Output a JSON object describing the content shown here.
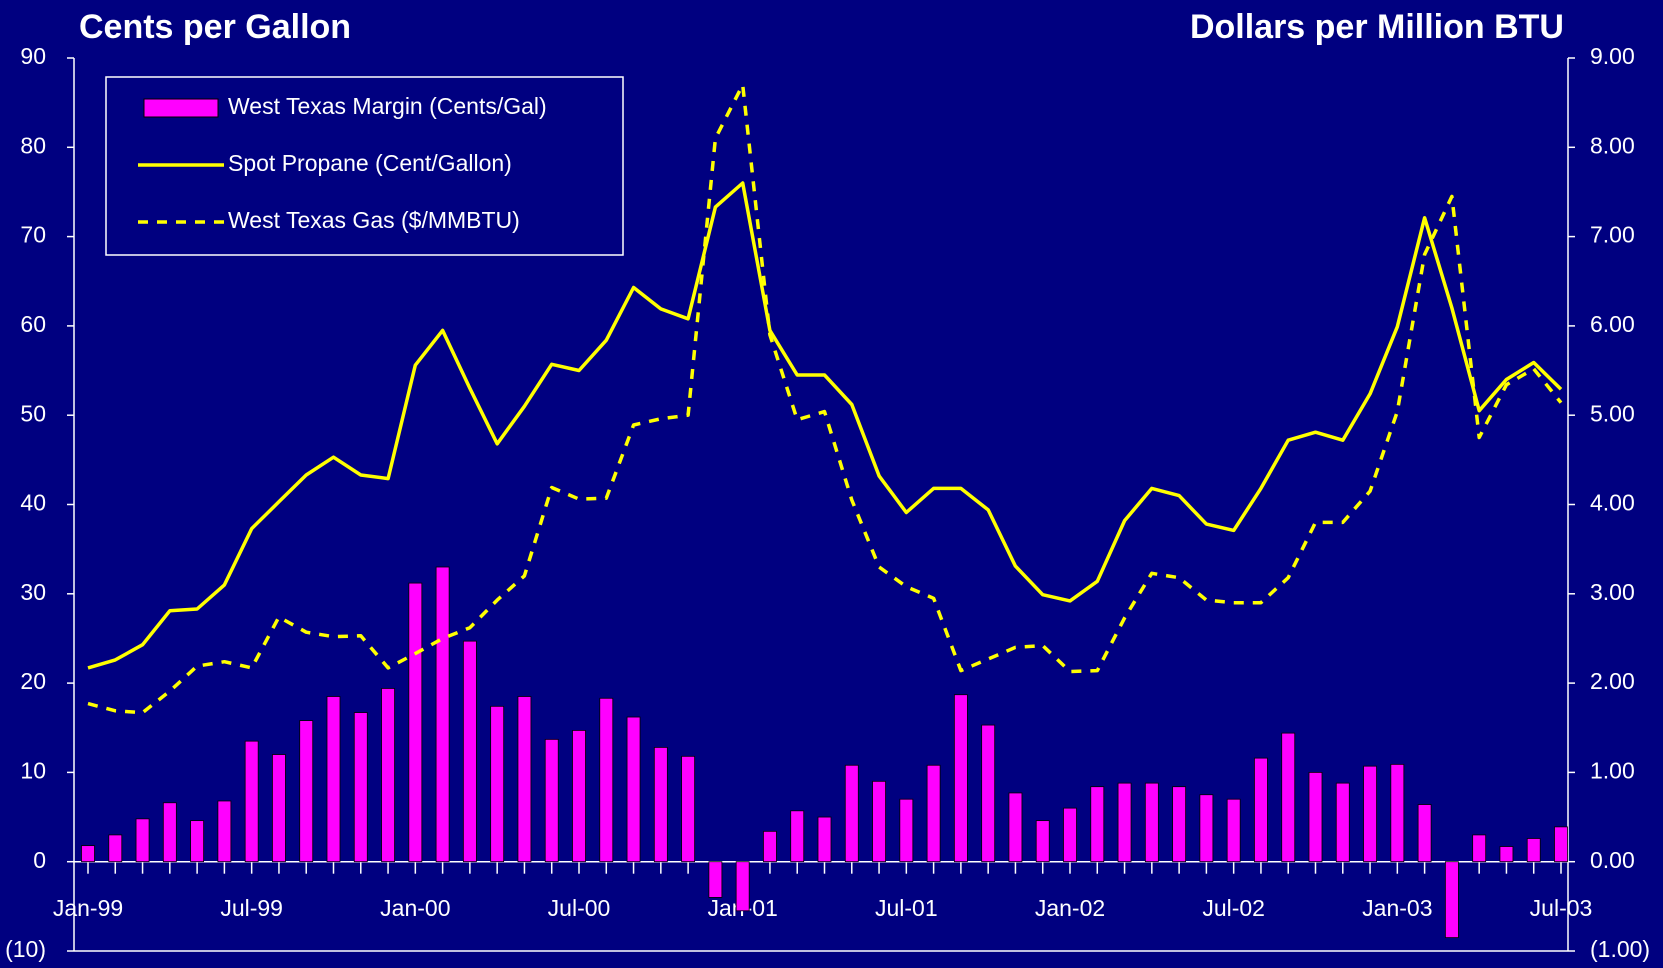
{
  "chart_data": {
    "type": "combo",
    "title_left": "Cents per Gallon",
    "title_right": "Dollars per Million  BTU",
    "background": "#000080",
    "categories": [
      "Jan-99",
      null,
      null,
      null,
      null,
      null,
      "Jul-99",
      null,
      null,
      null,
      null,
      null,
      "Jan-00",
      null,
      null,
      null,
      null,
      null,
      "Jul-00",
      null,
      null,
      null,
      null,
      null,
      "Jan-01",
      null,
      null,
      null,
      null,
      null,
      "Jul-01",
      null,
      null,
      null,
      null,
      null,
      "Jan-02",
      null,
      null,
      null,
      null,
      null,
      "Jul-02",
      null,
      null,
      null,
      null,
      null,
      "Jan-03",
      null,
      null,
      null,
      null,
      null,
      "Jul-03"
    ],
    "ylim": [
      -10,
      90
    ],
    "yticks": [
      {
        "value": -10,
        "label": "(10)"
      },
      0,
      10,
      20,
      30,
      40,
      50,
      60,
      70,
      80,
      90
    ],
    "y2lim": [
      -1,
      9
    ],
    "y2ticks": [
      {
        "value": -1,
        "label": "(1.00)"
      },
      {
        "value": 0,
        "label": "0.00"
      },
      {
        "value": 1,
        "label": "1.00"
      },
      {
        "value": 2,
        "label": "2.00"
      },
      {
        "value": 3,
        "label": "3.00"
      },
      {
        "value": 4,
        "label": "4.00"
      },
      {
        "value": 5,
        "label": "5.00"
      },
      {
        "value": 6,
        "label": "6.00"
      },
      {
        "value": 7,
        "label": "7.00"
      },
      {
        "value": 8,
        "label": "8.00"
      },
      {
        "value": 9,
        "label": "9.00"
      }
    ],
    "series": [
      {
        "name": "West Texas Margin (Cents/Gal)",
        "color": "#ff00ff",
        "type": "bar",
        "values": [
          1.8,
          3,
          4.8,
          6.6,
          4.6,
          6.8,
          13.5,
          12,
          15.8,
          18.5,
          16.7,
          19.4,
          31.2,
          33,
          24.7,
          17.4,
          18.5,
          13.7,
          14.7,
          18.3,
          16.2,
          12.8,
          11.8,
          -4,
          -5.5,
          3.4,
          5.7,
          5,
          10.8,
          9,
          7,
          10.8,
          18.7,
          15.3,
          7.7,
          4.6,
          6,
          8.4,
          8.8,
          8.8,
          8.4,
          7.5,
          7,
          11.6,
          14.4,
          10,
          8.8,
          10.7,
          10.9,
          6.4,
          -8.5,
          3,
          1.7,
          2.6,
          3.9
        ]
      },
      {
        "name": "Spot Propane (Cent/Gallon)",
        "color": "#ffff00",
        "type": "line",
        "line_style": "solid",
        "values": [
          21.7,
          22.6,
          24.3,
          28.1,
          28.3,
          31,
          37.3,
          40.3,
          43.3,
          45.3,
          43.3,
          42.9,
          55.6,
          59.5,
          53,
          46.8,
          51,
          55.7,
          55,
          58.4,
          64.3,
          61.9,
          60.8,
          73.3,
          76,
          59.5,
          54.5,
          54.5,
          51.2,
          43.2,
          39.1,
          41.8,
          41.8,
          39.4,
          33.1,
          29.9,
          29.2,
          31.4,
          38.2,
          41.8,
          41,
          37.8,
          37.1,
          41.8,
          47.2,
          48.1,
          47.2,
          52.4,
          59.9,
          72.1,
          62,
          50.5,
          54,
          55.9,
          52.9
        ]
      },
      {
        "name": "West Texas Gas ($/MMBTU)",
        "color": "#ffff00",
        "type": "line",
        "line_style": "dashed",
        "axis": "y2",
        "values": [
          1.77,
          1.69,
          1.67,
          1.91,
          2.19,
          2.24,
          2.17,
          2.74,
          2.57,
          2.52,
          2.53,
          2.17,
          2.33,
          2.5,
          2.62,
          2.93,
          3.2,
          4.19,
          4.06,
          4.07,
          4.89,
          4.96,
          5.0,
          8.1,
          8.7,
          5.9,
          4.95,
          5.04,
          4.05,
          3.3,
          3.08,
          2.95,
          2.14,
          2.27,
          2.4,
          2.42,
          2.13,
          2.14,
          2.73,
          3.23,
          3.18,
          2.93,
          2.9,
          2.9,
          3.18,
          3.8,
          3.8,
          4.15,
          5.04,
          6.8,
          7.45,
          4.75,
          5.34,
          5.52,
          5.14
        ]
      }
    ]
  }
}
